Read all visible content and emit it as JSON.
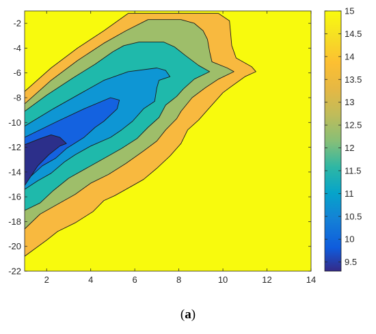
{
  "caption": {
    "open": "(",
    "letter": "a",
    "close": ")"
  },
  "chart_data": {
    "type": "contourf",
    "title": "",
    "xlabel": "",
    "ylabel": "",
    "xlim": [
      1,
      14
    ],
    "ylim": [
      -22,
      -1
    ],
    "x_ticks": [
      "2",
      "4",
      "6",
      "8",
      "10",
      "12",
      "14"
    ],
    "y_ticks": [
      "-2",
      "-4",
      "-6",
      "-8",
      "-10",
      "-12",
      "-14",
      "-16",
      "-18",
      "-20",
      "-22"
    ],
    "colorbar": {
      "range": [
        9.3,
        15
      ],
      "ticks": [
        "15",
        "14.5",
        "14",
        "13.5",
        "13",
        "12.5",
        "12",
        "11.5",
        "11",
        "10.5",
        "10",
        "9.5"
      ],
      "colormap": "parula"
    },
    "grid": false,
    "levels": [
      {
        "level": 15,
        "color": "#f8fa0d"
      },
      {
        "level": 14,
        "color": "#f8b93f"
      },
      {
        "level": 13,
        "color": "#9ebe6a"
      },
      {
        "level": 12,
        "color": "#1fb9ab"
      },
      {
        "level": 11,
        "color": "#0e96d4"
      },
      {
        "level": 10,
        "color": "#1462e0"
      },
      {
        "level": 9.5,
        "color": "#2c2f8a"
      }
    ],
    "regions": [
      {
        "level": 14,
        "boundary": [
          [
            1,
            -7.5
          ],
          [
            2.2,
            -5.6
          ],
          [
            3.4,
            -4
          ],
          [
            4.6,
            -2.6
          ],
          [
            5.7,
            -1.2
          ],
          [
            9.8,
            -1.2
          ],
          [
            10.3,
            -1.8
          ],
          [
            10.4,
            -3.8
          ],
          [
            10.6,
            -4.8
          ],
          [
            11.3,
            -5.5
          ],
          [
            11.5,
            -5.9
          ],
          [
            11,
            -6.3
          ],
          [
            10.3,
            -7.2
          ],
          [
            10,
            -7.6
          ],
          [
            9.7,
            -8.2
          ],
          [
            9.3,
            -9
          ],
          [
            8.9,
            -9.8
          ],
          [
            8.4,
            -10.6
          ],
          [
            8.1,
            -11.7
          ],
          [
            7.6,
            -12.7
          ],
          [
            7,
            -13.7
          ],
          [
            6.4,
            -14.6
          ],
          [
            5.9,
            -15.1
          ],
          [
            5.1,
            -15.9
          ],
          [
            4.6,
            -16.3
          ],
          [
            4.1,
            -17.2
          ],
          [
            3.3,
            -18.1
          ],
          [
            2.5,
            -18.8
          ],
          [
            2,
            -19.5
          ],
          [
            1,
            -20.8
          ]
        ]
      },
      {
        "level": 13,
        "boundary": [
          [
            1,
            -8.5
          ],
          [
            2.2,
            -6.6
          ],
          [
            3.4,
            -5
          ],
          [
            4.6,
            -3.6
          ],
          [
            5.6,
            -2.6
          ],
          [
            6.6,
            -1.7
          ],
          [
            8.1,
            -1.7
          ],
          [
            8.7,
            -2
          ],
          [
            9.1,
            -2.6
          ],
          [
            9.3,
            -3.3
          ],
          [
            9.4,
            -4.3
          ],
          [
            9.5,
            -5.1
          ],
          [
            10.2,
            -5.6
          ],
          [
            10.5,
            -5.9
          ],
          [
            9.8,
            -6.5
          ],
          [
            9.2,
            -7.2
          ],
          [
            8.6,
            -8
          ],
          [
            8.1,
            -9.1
          ],
          [
            7.9,
            -9.7
          ],
          [
            7.4,
            -10.6
          ],
          [
            7,
            -11.5
          ],
          [
            6.4,
            -12.3
          ],
          [
            5.6,
            -13.3
          ],
          [
            4.8,
            -14.2
          ],
          [
            4,
            -14.9
          ],
          [
            3.3,
            -15.8
          ],
          [
            2.5,
            -16.6
          ],
          [
            1.7,
            -17.4
          ],
          [
            1,
            -18.6
          ]
        ]
      },
      {
        "level": 12,
        "boundary": [
          [
            1,
            -9.1
          ],
          [
            2,
            -7.8
          ],
          [
            3.2,
            -6.4
          ],
          [
            4.2,
            -5.3
          ],
          [
            5,
            -4.3
          ],
          [
            5.5,
            -3.8
          ],
          [
            6.2,
            -3.5
          ],
          [
            7.3,
            -3.5
          ],
          [
            7.8,
            -3.9
          ],
          [
            8.3,
            -4.6
          ],
          [
            8.9,
            -5.4
          ],
          [
            9.4,
            -5.9
          ],
          [
            8.7,
            -6.5
          ],
          [
            8.2,
            -7.3
          ],
          [
            7.9,
            -7.9
          ],
          [
            7.4,
            -8.6
          ],
          [
            7.1,
            -9.6
          ],
          [
            6.6,
            -10.4
          ],
          [
            6.1,
            -11.3
          ],
          [
            5.4,
            -12.1
          ],
          [
            4.7,
            -12.8
          ],
          [
            3.9,
            -13.6
          ],
          [
            3,
            -14.5
          ],
          [
            2.3,
            -15.5
          ],
          [
            1.7,
            -16.5
          ],
          [
            1,
            -17.1
          ]
        ]
      },
      {
        "level": 11,
        "boundary": [
          [
            1,
            -10.3
          ],
          [
            2.3,
            -8.9
          ],
          [
            3.6,
            -7.6
          ],
          [
            4.6,
            -6.6
          ],
          [
            5.7,
            -5.9
          ],
          [
            7,
            -5.6
          ],
          [
            7.4,
            -5.8
          ],
          [
            7.6,
            -6.3
          ],
          [
            7.1,
            -6.6
          ],
          [
            7,
            -7.2
          ],
          [
            6.9,
            -8.3
          ],
          [
            6.4,
            -8.9
          ],
          [
            5.9,
            -9.9
          ],
          [
            5.4,
            -10.6
          ],
          [
            4.9,
            -11.2
          ],
          [
            4,
            -11.9
          ],
          [
            3.3,
            -12.6
          ],
          [
            2.8,
            -13.2
          ],
          [
            2.2,
            -14.1
          ],
          [
            1.6,
            -14.7
          ],
          [
            1,
            -15.4
          ]
        ]
      },
      {
        "level": 10,
        "boundary": [
          [
            1,
            -11.2
          ],
          [
            2.5,
            -9.9
          ],
          [
            3.7,
            -8.9
          ],
          [
            4.9,
            -8
          ],
          [
            5.3,
            -8.2
          ],
          [
            5.2,
            -8.9
          ],
          [
            4.6,
            -9.9
          ],
          [
            4.2,
            -10.4
          ],
          [
            3.7,
            -11.2
          ],
          [
            2.9,
            -12.1
          ],
          [
            2.4,
            -12.9
          ],
          [
            1.8,
            -13.5
          ],
          [
            1,
            -14.8
          ]
        ]
      },
      {
        "level": 9.5,
        "boundary": [
          [
            1,
            -11.8
          ],
          [
            1.7,
            -11.3
          ],
          [
            2.2,
            -11
          ],
          [
            2.6,
            -11.2
          ],
          [
            2.9,
            -11.7
          ],
          [
            2.6,
            -11.9
          ],
          [
            2.1,
            -12.6
          ],
          [
            1.6,
            -13.5
          ],
          [
            1.3,
            -14.3
          ],
          [
            1,
            -15.1
          ]
        ]
      }
    ]
  }
}
